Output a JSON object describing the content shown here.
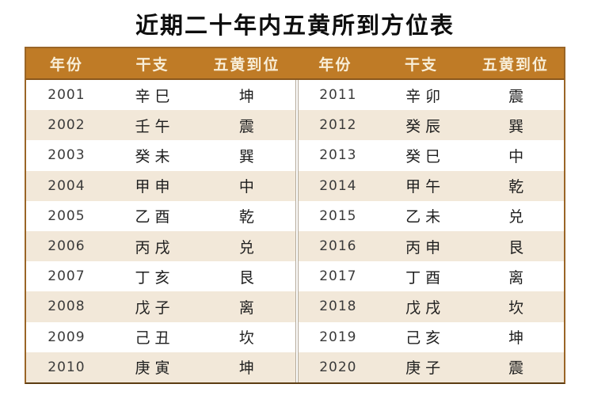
{
  "title": "近期二十年内五黄所到方位表",
  "colors": {
    "header_bg": "#bf7b26",
    "header_text": "#f8eed8",
    "row_alt_bg": "#f2e8d9",
    "outer_border": "#9a6527",
    "divider": "#b3a999"
  },
  "table": {
    "headers": [
      "年份",
      "干支",
      "五黄到位"
    ],
    "left_rows": [
      {
        "year": "2001",
        "ganzhi": "辛巳",
        "position": "坤"
      },
      {
        "year": "2002",
        "ganzhi": "壬午",
        "position": "震"
      },
      {
        "year": "2003",
        "ganzhi": "癸未",
        "position": "巽"
      },
      {
        "year": "2004",
        "ganzhi": "甲申",
        "position": "中"
      },
      {
        "year": "2005",
        "ganzhi": "乙酉",
        "position": "乾"
      },
      {
        "year": "2006",
        "ganzhi": "丙戌",
        "position": "兑"
      },
      {
        "year": "2007",
        "ganzhi": "丁亥",
        "position": "艮"
      },
      {
        "year": "2008",
        "ganzhi": "戊子",
        "position": "离"
      },
      {
        "year": "2009",
        "ganzhi": "己丑",
        "position": "坎"
      },
      {
        "year": "2010",
        "ganzhi": "庚寅",
        "position": "坤"
      }
    ],
    "right_rows": [
      {
        "year": "2011",
        "ganzhi": "辛卯",
        "position": "震"
      },
      {
        "year": "2012",
        "ganzhi": "癸辰",
        "position": "巽"
      },
      {
        "year": "2013",
        "ganzhi": "癸巳",
        "position": "中"
      },
      {
        "year": "2014",
        "ganzhi": "甲午",
        "position": "乾"
      },
      {
        "year": "2015",
        "ganzhi": "乙未",
        "position": "兑"
      },
      {
        "year": "2016",
        "ganzhi": "丙申",
        "position": "艮"
      },
      {
        "year": "2017",
        "ganzhi": "丁酉",
        "position": "离"
      },
      {
        "year": "2018",
        "ganzhi": "戊戌",
        "position": "坎"
      },
      {
        "year": "2019",
        "ganzhi": "己亥",
        "position": "坤"
      },
      {
        "year": "2020",
        "ganzhi": "庚子",
        "position": "震"
      }
    ]
  }
}
